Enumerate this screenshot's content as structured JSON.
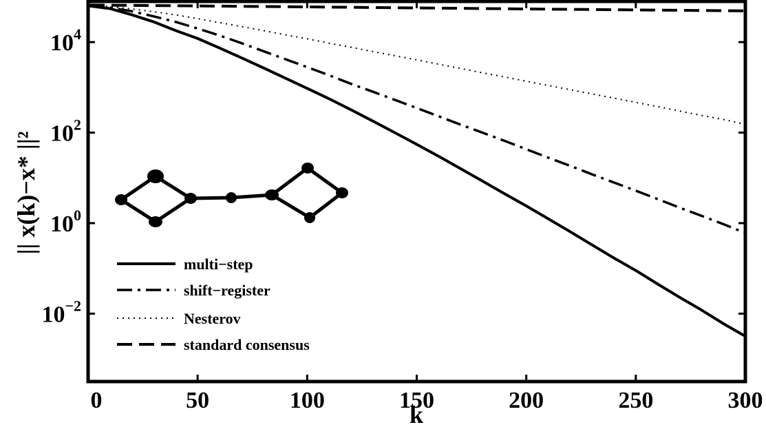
{
  "chart_data": {
    "type": "line",
    "title": "",
    "xlabel": "k",
    "ylabel": "|| x(k)−x* ||²",
    "xlim": [
      0,
      300
    ],
    "ylim_log10": [
      -3.5,
      4.9
    ],
    "yscale": "log",
    "xticks": [
      0,
      50,
      100,
      150,
      200,
      250,
      300
    ],
    "yticks": [
      {
        "base": "10",
        "exp": "4",
        "value": 10000
      },
      {
        "base": "10",
        "exp": "2",
        "value": 100
      },
      {
        "base": "10",
        "exp": "0",
        "value": 1
      },
      {
        "base": "10",
        "exp": "−2",
        "value": 0.01
      }
    ],
    "grid": false,
    "legend_position": "lower-left",
    "series": [
      {
        "name": "multi−step",
        "style": "solid",
        "x": [
          0,
          10,
          20,
          30,
          40,
          50,
          60,
          70,
          80,
          90,
          100,
          110,
          120,
          130,
          140,
          150,
          160,
          170,
          180,
          190,
          200,
          210,
          220,
          230,
          240,
          250,
          260,
          270,
          280,
          290,
          300
        ],
        "y": [
          63000,
          55000,
          40000,
          28000,
          18000,
          12000,
          7400,
          4500,
          2700,
          1600,
          950,
          560,
          320,
          180,
          100,
          55,
          30,
          16,
          8.5,
          4.5,
          2.4,
          1.25,
          0.65,
          0.33,
          0.17,
          0.09,
          0.045,
          0.023,
          0.012,
          0.006,
          0.0033
        ]
      },
      {
        "name": "shift−register",
        "style": "dashdot",
        "x": [
          0,
          10,
          20,
          30,
          40,
          50,
          60,
          70,
          80,
          90,
          100,
          110,
          120,
          130,
          140,
          150,
          160,
          170,
          180,
          190,
          200,
          210,
          220,
          230,
          240,
          250,
          260,
          270,
          280,
          290,
          300
        ],
        "y": [
          65000,
          58000,
          48000,
          37000,
          28000,
          20000,
          14000,
          9500,
          6300,
          4200,
          2800,
          1850,
          1200,
          800,
          530,
          350,
          230,
          150,
          100,
          66,
          43,
          28,
          18.5,
          12,
          7.9,
          5.2,
          3.4,
          2.2,
          1.45,
          0.95,
          0.62
        ]
      },
      {
        "name": "Nesterov",
        "style": "dotted",
        "x": [
          0,
          10,
          20,
          30,
          40,
          50,
          60,
          70,
          80,
          90,
          100,
          110,
          120,
          130,
          140,
          150,
          160,
          170,
          180,
          190,
          200,
          210,
          220,
          230,
          240,
          250,
          260,
          270,
          280,
          290,
          300
        ],
        "y": [
          66000,
          61000,
          54000,
          47000,
          40000,
          33000,
          27000,
          22000,
          18000,
          14500,
          11800,
          9500,
          7700,
          6200,
          5000,
          4050,
          3250,
          2620,
          2100,
          1700,
          1370,
          1100,
          890,
          715,
          580,
          465,
          375,
          300,
          240,
          195,
          155
        ]
      },
      {
        "name": "standard consensus",
        "style": "dashed",
        "x": [
          0,
          50,
          100,
          150,
          200,
          250,
          300
        ],
        "y": [
          66000,
          63000,
          60000,
          57000,
          54000,
          51500,
          49000
        ]
      }
    ]
  },
  "legend": {
    "items": [
      {
        "label": "multi−step"
      },
      {
        "label": "shift−register"
      },
      {
        "label": "Nesterov"
      },
      {
        "label": "standard consensus"
      }
    ]
  }
}
